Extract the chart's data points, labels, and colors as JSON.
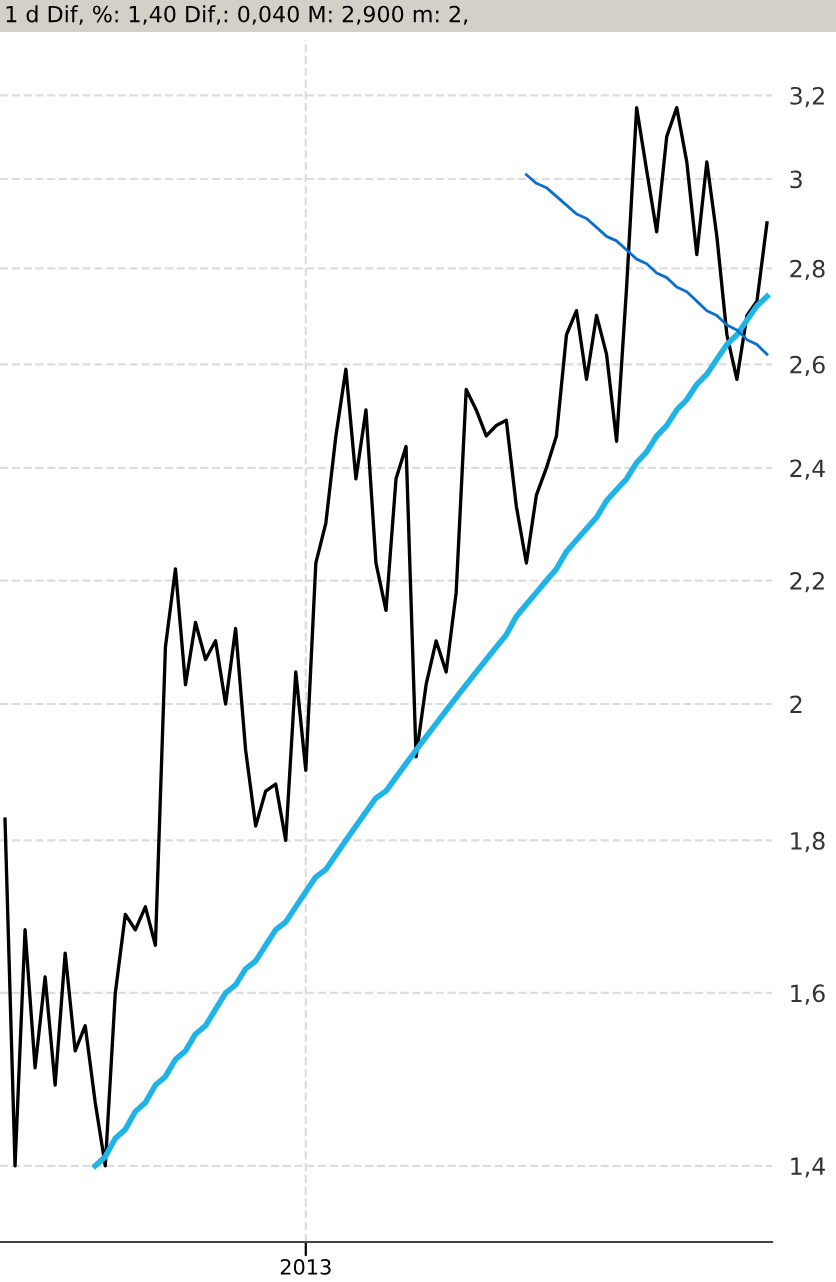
{
  "chart_data": {
    "type": "line",
    "title": "1 d Dif, %: 1,40 Dif,: 0,040 M: 2,900 m: 2,",
    "log": "y",
    "grid": true,
    "marker": "none",
    "line_style": "solid",
    "categories": [
      null,
      null,
      null,
      null,
      null,
      null,
      null,
      null,
      null,
      null,
      null,
      null,
      null,
      null,
      null,
      null,
      null,
      null,
      null,
      null,
      null,
      null,
      null,
      null,
      null,
      null,
      null,
      null,
      null,
      null,
      "2013",
      null,
      null,
      null,
      null,
      null,
      null,
      null,
      null,
      null,
      null,
      null,
      null,
      null,
      null,
      null,
      null,
      null,
      null,
      null,
      null,
      null,
      null,
      null,
      null,
      null,
      null,
      null,
      null,
      null,
      null,
      null,
      null,
      null,
      null,
      null,
      null,
      null,
      null,
      null,
      null,
      null,
      null,
      null,
      null,
      null,
      null
    ],
    "ylim": [
      1.32,
      3.34
    ],
    "yticks": [
      {
        "value": 1.4,
        "label": "1,4"
      },
      {
        "value": 1.6,
        "label": "1,6"
      },
      {
        "value": 1.8,
        "label": "1,8"
      },
      {
        "value": 2,
        "label": "2"
      },
      {
        "value": 2.2,
        "label": "2,2"
      },
      {
        "value": 2.4,
        "label": "2,4"
      },
      {
        "value": 2.6,
        "label": "2,6"
      },
      {
        "value": 2.8,
        "label": "2,8"
      },
      {
        "value": 3,
        "label": "3"
      },
      {
        "value": 3.2,
        "label": "3,2"
      }
    ],
    "series": [
      {
        "color": "#000000",
        "values": [
          1.83,
          1.4,
          1.68,
          1.51,
          1.62,
          1.49,
          1.65,
          1.53,
          1.56,
          1.47,
          1.4,
          1.6,
          1.7,
          1.68,
          1.71,
          1.66,
          2.09,
          2.22,
          2.03,
          2.13,
          2.07,
          2.1,
          2.0,
          2.12,
          1.93,
          1.82,
          1.87,
          1.88,
          1.8,
          2.05,
          1.9,
          2.23,
          2.3,
          2.46,
          2.59,
          2.38,
          2.51,
          2.23,
          2.15,
          2.38,
          2.44,
          1.92,
          2.03,
          2.1,
          2.05,
          2.18,
          2.55,
          2.51,
          2.46,
          2.48,
          2.49,
          2.33,
          2.23,
          2.35,
          2.4,
          2.46,
          2.66,
          2.71,
          2.57,
          2.7,
          2.62,
          2.45,
          2.76,
          3.17,
          3.02,
          2.88,
          3.1,
          3.17,
          3.04,
          2.83,
          3.04,
          2.87,
          2.66,
          2.57,
          2.7,
          2.73,
          2.9
        ]
      },
      {
        "color": "#1fb4e8",
        "values": [
          null,
          null,
          null,
          null,
          null,
          null,
          null,
          null,
          null,
          1.4,
          1.41,
          1.43,
          1.44,
          1.46,
          1.47,
          1.49,
          1.5,
          1.52,
          1.53,
          1.55,
          1.56,
          1.58,
          1.6,
          1.61,
          1.63,
          1.64,
          1.66,
          1.68,
          1.69,
          1.71,
          1.73,
          1.75,
          1.76,
          1.78,
          1.8,
          1.82,
          1.84,
          1.86,
          1.87,
          1.89,
          1.91,
          1.93,
          1.95,
          1.97,
          1.99,
          2.01,
          2.03,
          2.05,
          2.07,
          2.09,
          2.11,
          2.14,
          2.16,
          2.18,
          2.2,
          2.22,
          2.25,
          2.27,
          2.29,
          2.31,
          2.34,
          2.36,
          2.38,
          2.41,
          2.43,
          2.46,
          2.48,
          2.51,
          2.53,
          2.56,
          2.58,
          2.61,
          2.64,
          2.66,
          2.69,
          2.72,
          2.74
        ]
      },
      {
        "color": "#0a6fd0",
        "values": [
          null,
          null,
          null,
          null,
          null,
          null,
          null,
          null,
          null,
          null,
          null,
          null,
          null,
          null,
          null,
          null,
          null,
          null,
          null,
          null,
          null,
          null,
          null,
          null,
          null,
          null,
          null,
          null,
          null,
          null,
          null,
          null,
          null,
          null,
          null,
          null,
          null,
          null,
          null,
          null,
          null,
          null,
          null,
          null,
          null,
          null,
          null,
          null,
          null,
          null,
          null,
          null,
          3.01,
          2.99,
          2.98,
          2.96,
          2.94,
          2.92,
          2.91,
          2.89,
          2.87,
          2.86,
          2.84,
          2.82,
          2.81,
          2.79,
          2.78,
          2.76,
          2.75,
          2.73,
          2.71,
          2.7,
          2.68,
          2.67,
          2.65,
          2.64,
          2.62
        ]
      }
    ]
  }
}
